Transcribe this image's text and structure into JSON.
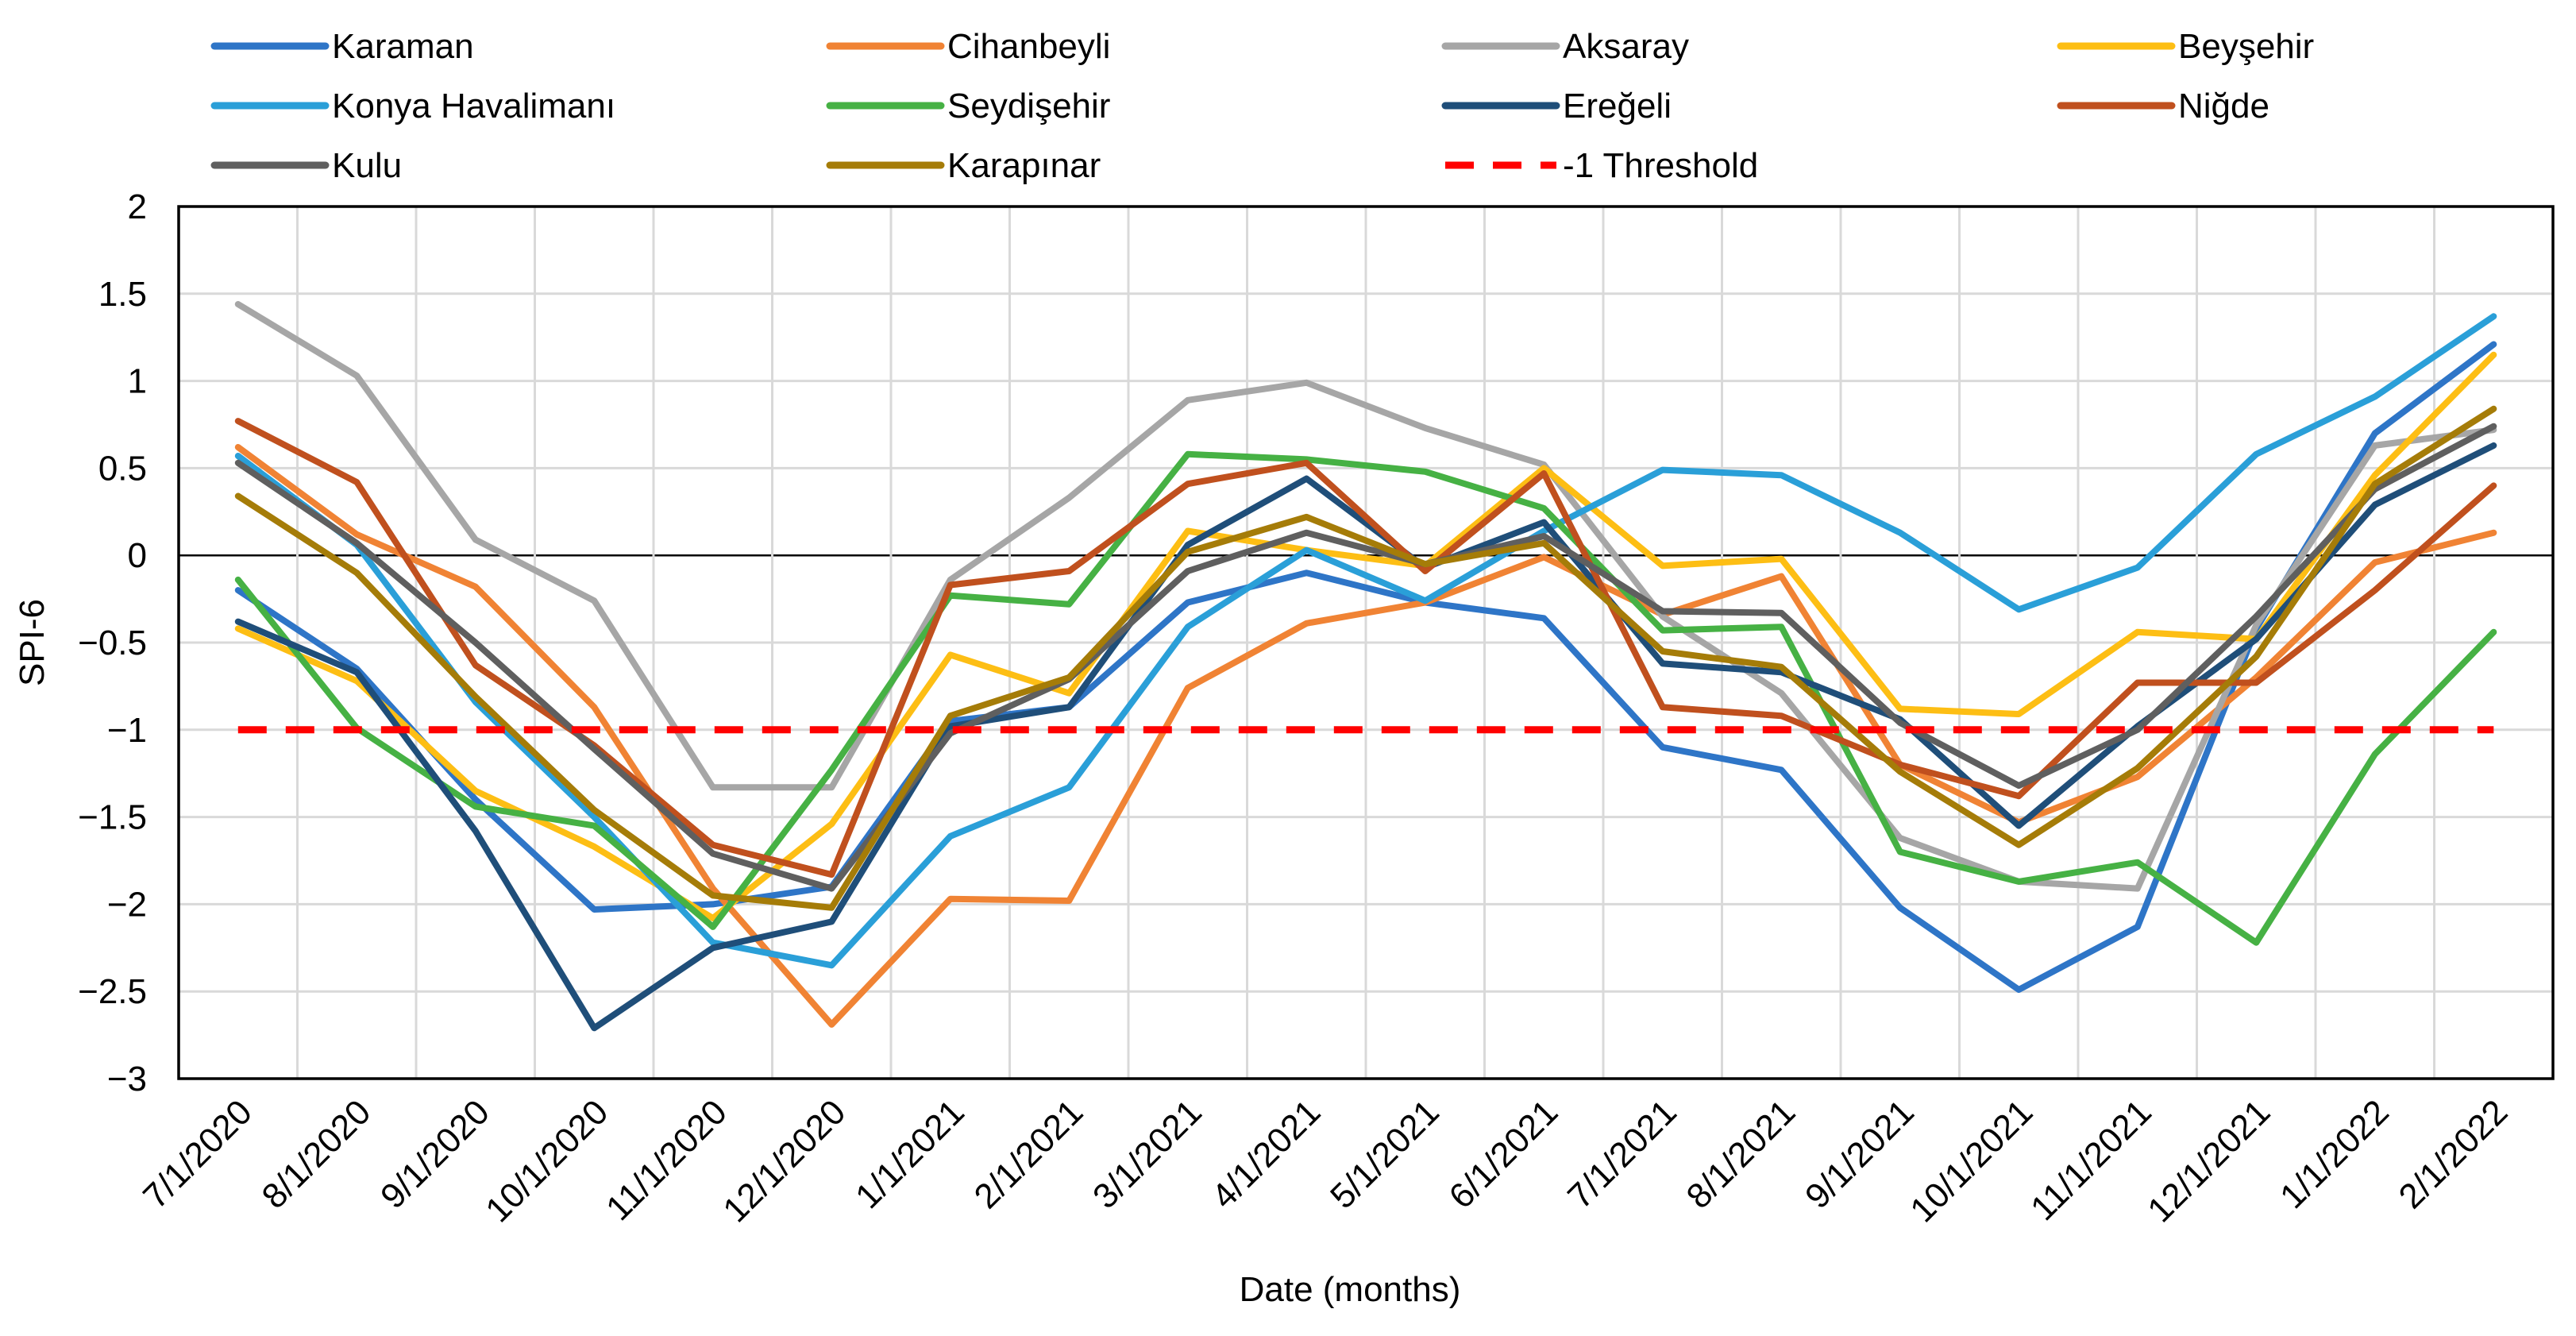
{
  "chart_data": {
    "type": "line",
    "title": "",
    "xlabel": "Date (months)",
    "ylabel": "SPI-6",
    "ylim": [
      -3,
      2
    ],
    "yticks": [
      "2",
      "1.5",
      "1",
      "0.5",
      "0",
      "−0.5",
      "−1",
      "−1.5",
      "−2",
      "−2.5",
      "−3"
    ],
    "ytick_values": [
      2,
      1.5,
      1,
      0.5,
      0,
      -0.5,
      -1,
      -1.5,
      -2,
      -2.5,
      -3
    ],
    "grid": true,
    "legend_position": "top",
    "categories": [
      "7/1/2020",
      "8/1/2020",
      "9/1/2020",
      "10/1/2020",
      "11/1/2020",
      "12/1/2020",
      "1/1/2021",
      "2/1/2021",
      "3/1/2021",
      "4/1/2021",
      "5/1/2021",
      "6/1/2021",
      "7/1/2021",
      "8/1/2021",
      "9/1/2021",
      "10/1/2021",
      "11/1/2021",
      "12/1/2021",
      "1/1/2022",
      "2/1/2022"
    ],
    "series": [
      {
        "name": "Karaman",
        "color": "#2E75C7",
        "dashed": false,
        "values": [
          -0.2,
          -0.65,
          -1.4,
          -2.03,
          -2.0,
          -1.9,
          -0.95,
          -0.87,
          -0.27,
          -0.1,
          -0.27,
          -0.36,
          -1.1,
          -1.23,
          -2.02,
          -2.49,
          -2.13,
          -0.42,
          0.7,
          1.21
        ]
      },
      {
        "name": "Cihanbeyli",
        "color": "#F08334",
        "dashed": false,
        "values": [
          0.62,
          0.12,
          -0.18,
          -0.87,
          -1.91,
          -2.69,
          -1.97,
          -1.98,
          -0.76,
          -0.39,
          -0.27,
          -0.01,
          -0.34,
          -0.12,
          -1.2,
          -1.53,
          -1.27,
          -0.7,
          -0.04,
          0.13
        ]
      },
      {
        "name": "Aksaray",
        "color": "#A6A6A6",
        "dashed": false,
        "values": [
          1.44,
          1.03,
          0.09,
          -0.26,
          -1.33,
          -1.33,
          -0.14,
          0.33,
          0.89,
          0.99,
          0.73,
          0.52,
          -0.35,
          -0.79,
          -1.62,
          -1.87,
          -1.91,
          -0.4,
          0.63,
          0.72
        ]
      },
      {
        "name": "Beyşehir",
        "color": "#FDBE14",
        "dashed": false,
        "values": [
          -0.42,
          -0.72,
          -1.35,
          -1.67,
          -2.08,
          -1.54,
          -0.57,
          -0.79,
          0.14,
          0.03,
          -0.06,
          0.5,
          -0.06,
          -0.02,
          -0.88,
          -0.91,
          -0.44,
          -0.48,
          0.46,
          1.15
        ]
      },
      {
        "name": "Konya Havalimanı",
        "color": "#2A9FD8",
        "dashed": false,
        "values": [
          0.57,
          0.06,
          -0.84,
          -1.5,
          -2.22,
          -2.35,
          -1.61,
          -1.33,
          -0.41,
          0.03,
          -0.26,
          0.14,
          0.49,
          0.46,
          0.13,
          -0.31,
          -0.07,
          0.58,
          0.91,
          1.37
        ]
      },
      {
        "name": "Seydişehir",
        "color": "#46B144",
        "dashed": false,
        "values": [
          -0.14,
          -0.99,
          -1.44,
          -1.55,
          -2.13,
          -1.23,
          -0.23,
          -0.28,
          0.58,
          0.55,
          0.48,
          0.27,
          -0.43,
          -0.41,
          -1.7,
          -1.87,
          -1.76,
          -2.22,
          -1.14,
          -0.44
        ]
      },
      {
        "name": "Ereğeli",
        "color": "#1F4E79",
        "dashed": false,
        "values": [
          -0.38,
          -0.67,
          -1.58,
          -2.71,
          -2.25,
          -2.1,
          -0.98,
          -0.87,
          0.06,
          0.44,
          -0.07,
          0.19,
          -0.62,
          -0.67,
          -0.94,
          -1.55,
          -0.98,
          -0.48,
          0.29,
          0.63
        ]
      },
      {
        "name": "Niğde",
        "color": "#C0501E",
        "dashed": false,
        "values": [
          0.77,
          0.42,
          -0.63,
          -1.09,
          -1.66,
          -1.83,
          -0.17,
          -0.09,
          0.41,
          0.53,
          -0.09,
          0.47,
          -0.87,
          -0.92,
          -1.2,
          -1.38,
          -0.73,
          -0.73,
          -0.2,
          0.4
        ]
      },
      {
        "name": "Kulu",
        "color": "#5F5F5F",
        "dashed": false,
        "values": [
          0.53,
          0.07,
          -0.5,
          -1.11,
          -1.71,
          -1.91,
          -1.02,
          -0.71,
          -0.09,
          0.13,
          -0.05,
          0.11,
          -0.32,
          -0.33,
          -0.96,
          -1.32,
          -1.0,
          -0.35,
          0.38,
          0.74
        ]
      },
      {
        "name": "Karapınar",
        "color": "#A57C08",
        "dashed": false,
        "values": [
          0.34,
          -0.1,
          -0.81,
          -1.46,
          -1.95,
          -2.02,
          -0.92,
          -0.7,
          0.02,
          0.22,
          -0.05,
          0.07,
          -0.55,
          -0.64,
          -1.24,
          -1.66,
          -1.22,
          -0.58,
          0.41,
          0.84
        ]
      },
      {
        "name": "-1 Threshold",
        "color": "#FF0000",
        "dashed": true,
        "values": [
          -1,
          -1,
          -1,
          -1,
          -1,
          -1,
          -1,
          -1,
          -1,
          -1,
          -1,
          -1,
          -1,
          -1,
          -1,
          -1,
          -1,
          -1,
          -1,
          -1
        ]
      }
    ]
  }
}
